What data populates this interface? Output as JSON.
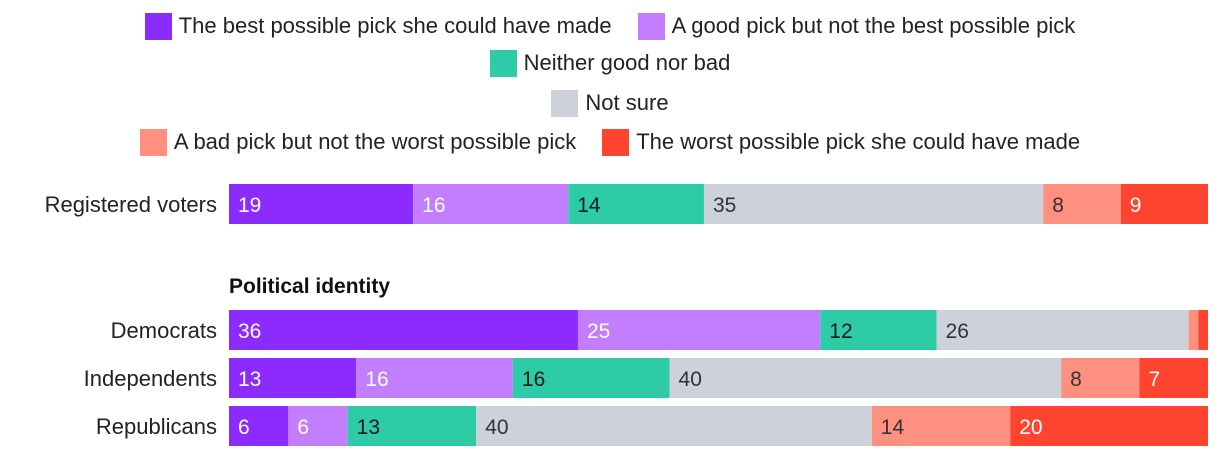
{
  "chart_data": {
    "type": "stacked-bar-horizontal",
    "orientation": "horizontal",
    "legend": [
      {
        "key": "best",
        "label": "The best possible pick she could have made",
        "color": "#8C2BFF"
      },
      {
        "key": "good",
        "label": "A good pick but not the best possible pick",
        "color": "#C27EFF"
      },
      {
        "key": "neither",
        "label": "Neither good nor bad",
        "color": "#2ECBA7"
      },
      {
        "key": "notsure",
        "label": "Not sure",
        "color": "#CDD1DA"
      },
      {
        "key": "bad",
        "label": "A bad pick but not the worst possible pick",
        "color": "#FF9080"
      },
      {
        "key": "worst",
        "label": "The worst possible pick she could have made",
        "color": "#FF4530"
      }
    ],
    "groups": [
      {
        "heading": "",
        "rows": [
          {
            "label": "Registered voters",
            "values": [
              19,
              16,
              14,
              35,
              8,
              9
            ]
          }
        ]
      },
      {
        "heading": "Political identity",
        "rows": [
          {
            "label": "Democrats",
            "values": [
              36,
              25,
              12,
              26,
              1,
              1
            ]
          },
          {
            "label": "Independents",
            "values": [
              13,
              16,
              16,
              40,
              8,
              7
            ]
          },
          {
            "label": "Republicans",
            "values": [
              6,
              6,
              13,
              40,
              14,
              20
            ]
          }
        ]
      }
    ],
    "label_min_value": 3
  }
}
